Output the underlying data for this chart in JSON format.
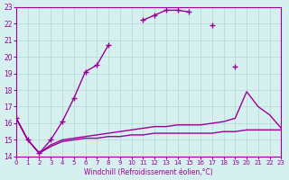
{
  "xlabel": "Windchill (Refroidissement éolien,°C)",
  "ylabel": "",
  "bg_color": "#d6f0f0",
  "grid_color": "#b0d8d8",
  "line_color": "#990099",
  "xlim": [
    0,
    23
  ],
  "ylim": [
    14,
    23
  ],
  "xticks": [
    0,
    1,
    2,
    3,
    4,
    5,
    6,
    7,
    8,
    9,
    10,
    11,
    12,
    13,
    14,
    15,
    16,
    17,
    18,
    19,
    20,
    21,
    22,
    23
  ],
  "yticks": [
    14,
    15,
    16,
    17,
    18,
    19,
    20,
    21,
    22,
    23
  ],
  "line1_x": [
    0,
    1,
    2,
    3,
    4,
    5,
    6,
    7,
    8,
    9,
    10,
    11,
    12,
    13,
    14,
    15,
    16,
    17,
    18,
    19,
    20,
    21,
    22,
    23
  ],
  "line1_y": [
    16.3,
    15.0,
    14.2,
    15.0,
    16.1,
    17.5,
    19.1,
    19.5,
    20.7,
    null,
    null,
    22.2,
    22.5,
    22.8,
    22.8,
    22.7,
    null,
    21.9,
    null,
    19.4,
    null,
    null,
    null,
    null
  ],
  "line2_x": [
    0,
    1,
    2,
    3,
    4,
    5,
    6,
    7,
    8,
    9,
    10,
    11,
    12,
    13,
    14,
    15,
    16,
    17,
    18,
    19,
    20,
    21,
    22,
    23
  ],
  "line2_y": [
    16.3,
    15.0,
    14.2,
    14.7,
    15.0,
    15.1,
    15.2,
    15.3,
    15.4,
    15.5,
    15.6,
    15.7,
    15.8,
    15.8,
    15.9,
    15.9,
    15.9,
    16.0,
    16.1,
    16.3,
    17.9,
    17.0,
    16.5,
    15.7
  ],
  "line3_x": [
    0,
    1,
    2,
    3,
    4,
    5,
    6,
    7,
    8,
    9,
    10,
    11,
    12,
    13,
    14,
    15,
    16,
    17,
    18,
    19,
    20,
    21,
    22,
    23
  ],
  "line3_y": [
    16.3,
    15.0,
    14.2,
    14.6,
    14.9,
    15.0,
    15.1,
    15.1,
    15.2,
    15.2,
    15.3,
    15.3,
    15.4,
    15.4,
    15.4,
    15.4,
    15.4,
    15.4,
    15.5,
    15.5,
    15.6,
    15.6,
    15.6,
    15.6
  ]
}
